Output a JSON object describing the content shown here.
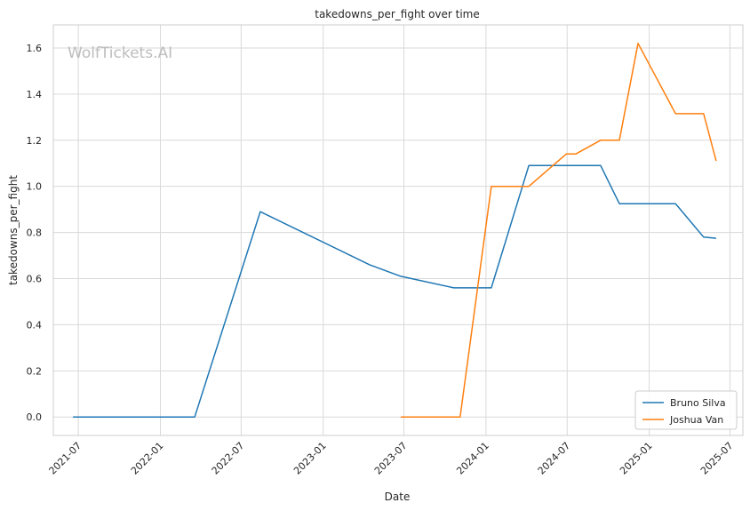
{
  "chart_data": {
    "type": "line",
    "title": "takedowns_per_fight over time",
    "xlabel": "Date",
    "ylabel": "takedowns_per_fight",
    "watermark": "WolfTickets.AI",
    "x_ticks": [
      "2021-07",
      "2022-01",
      "2022-07",
      "2023-01",
      "2023-07",
      "2024-01",
      "2024-07",
      "2025-01",
      "2025-07"
    ],
    "y_ticks": [
      "0.0",
      "0.2",
      "0.4",
      "0.6",
      "0.8",
      "1.0",
      "1.2",
      "1.4",
      "1.6"
    ],
    "xlim": [
      "2021-05-06",
      "2025-07-30"
    ],
    "ylim": [
      -0.08,
      1.7
    ],
    "grid": true,
    "legend_position": "bottom-right",
    "series": [
      {
        "name": "Bruno Silva",
        "color": "#1f77b4",
        "points": [
          [
            "2021-06-19",
            0.0
          ],
          [
            "2022-03-19",
            0.0
          ],
          [
            "2022-08-13",
            0.89
          ],
          [
            "2023-04-15",
            0.66
          ],
          [
            "2023-06-24",
            0.61
          ],
          [
            "2023-10-21",
            0.56
          ],
          [
            "2024-01-13",
            0.56
          ],
          [
            "2024-04-06",
            1.09
          ],
          [
            "2024-09-14",
            1.09
          ],
          [
            "2024-10-26",
            0.925
          ],
          [
            "2025-03-01",
            0.925
          ],
          [
            "2025-05-03",
            0.78
          ],
          [
            "2025-05-31",
            0.775
          ]
        ]
      },
      {
        "name": "Joshua Van",
        "color": "#ff7f0e",
        "points": [
          [
            "2023-06-24",
            0.0
          ],
          [
            "2023-11-04",
            0.0
          ],
          [
            "2024-01-13",
            1.0
          ],
          [
            "2024-04-06",
            1.0
          ],
          [
            "2024-06-29",
            1.14
          ],
          [
            "2024-07-20",
            1.14
          ],
          [
            "2024-09-14",
            1.2
          ],
          [
            "2024-10-26",
            1.2
          ],
          [
            "2024-12-07",
            1.62
          ],
          [
            "2025-03-01",
            1.315
          ],
          [
            "2025-05-03",
            1.315
          ],
          [
            "2025-05-31",
            1.11
          ]
        ]
      }
    ]
  }
}
